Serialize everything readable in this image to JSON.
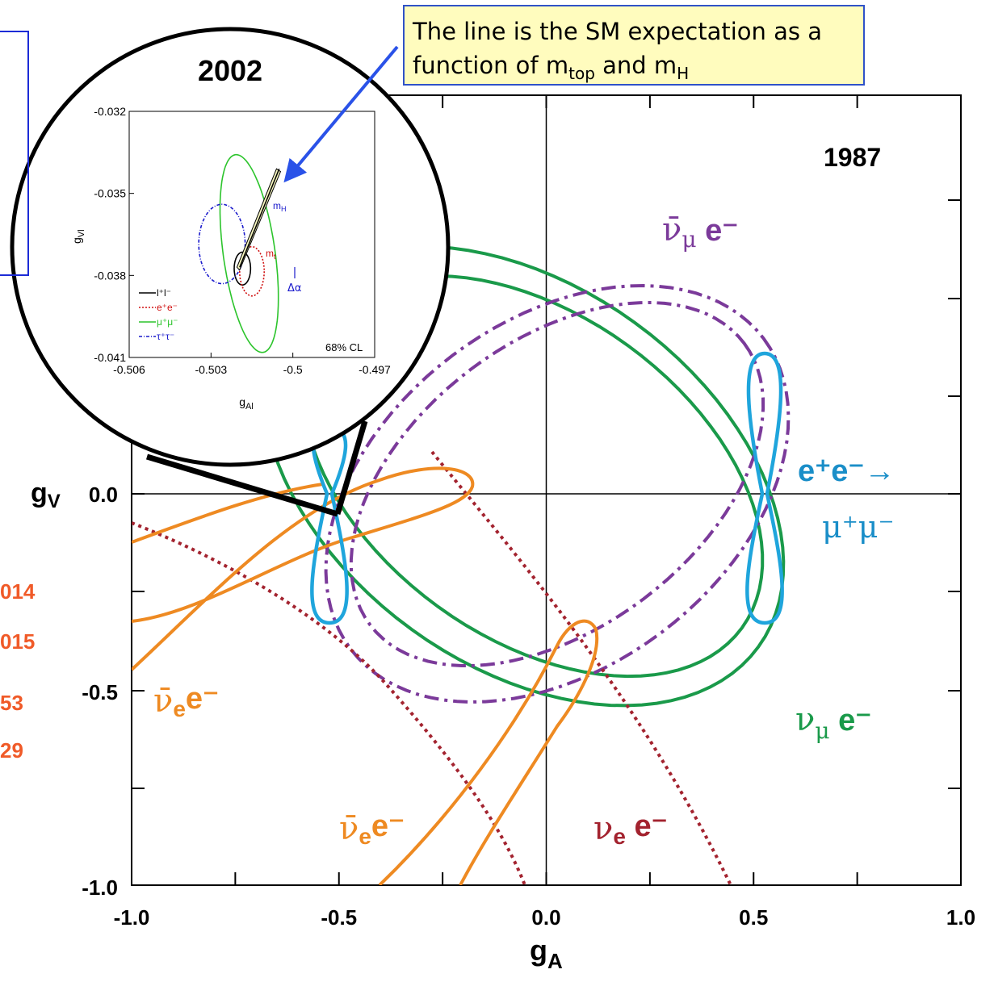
{
  "callout": {
    "line1": "The line is the SM expectation as a",
    "line2_pre": "function of m",
    "line2_sub1": "top",
    "line2_mid": " and m",
    "line2_sub2": "H"
  },
  "left_values": [
    "014",
    "015",
    "53",
    "29"
  ],
  "colors": {
    "green": "#1a9a4a",
    "purple": "#7b3a9a",
    "orange": "#ee8a22",
    "darkred": "#a3232f",
    "cyan": "#1fa5dc",
    "arrow": "#2a52e8",
    "callout_bg": "#fffcbe",
    "callout_border": "#2f52c8",
    "red_text": "#f05a28"
  },
  "chart_data": [
    {
      "type": "line",
      "title": "1987",
      "xlabel": "gA",
      "ylabel": "gV",
      "xlim": [
        -1.0,
        1.0
      ],
      "ylim": [
        -1.0,
        0.0
      ],
      "x_ticks": [
        "-1.0",
        "-0.5",
        "0.0",
        "0.5",
        "1.0"
      ],
      "y_ticks": [
        "-1.0",
        "-0.5",
        "0.0"
      ],
      "grid": false,
      "ylabel_tick": "0.0",
      "series": [
        {
          "name": "ν̄μ e⁻",
          "color": "#7b3a9a",
          "style": "dash-dot",
          "shape": "closed ring"
        },
        {
          "name": "νμ e⁻",
          "color": "#1a9a4a",
          "style": "solid",
          "shape": "closed ring"
        },
        {
          "name": "e⁺e⁻→ μ⁺μ⁻",
          "color": "#1fa5dc",
          "style": "solid",
          "shape": "two lobes at gA ≈ ±0.5"
        },
        {
          "name": "ν̄e e⁻",
          "color": "#ee8a22",
          "style": "solid"
        },
        {
          "name": "νe e⁻",
          "color": "#a3232f",
          "style": "dotted"
        }
      ],
      "annotations": [
        "ν̄",
        "μ",
        "e⁻",
        "e⁺e⁻→",
        "μ⁺μ⁻",
        "ν",
        "e⁻",
        "ν̄",
        "e",
        "e⁻",
        "ν̄",
        "e",
        "e⁻",
        "ν",
        "e",
        "e⁻"
      ],
      "points": [
        {
          "gA": -0.5,
          "gV": -0.04,
          "color": "#e02020"
        }
      ]
    },
    {
      "type": "line",
      "title": "2002",
      "xlabel": "gAl",
      "ylabel": "gVl",
      "xlim": [
        -0.506,
        -0.497
      ],
      "ylim": [
        -0.041,
        -0.032
      ],
      "x_ticks": [
        "-0.506",
        "-0.503",
        "-0.5",
        "-0.497"
      ],
      "y_ticks": [
        "-0.032",
        "-0.035",
        "-0.038",
        "-0.041"
      ],
      "series": [
        {
          "name": "l⁺l⁻",
          "color": "#000000",
          "style": "solid",
          "ellipse": {
            "cx": -0.50185,
            "cy": -0.03775,
            "rx": 0.0003,
            "ry": 0.0006
          }
        },
        {
          "name": "e⁺e⁻",
          "color": "#d01010",
          "style": "dotted",
          "ellipse": {
            "cx": -0.5015,
            "cy": -0.03785,
            "rx": 0.00045,
            "ry": 0.0009
          }
        },
        {
          "name": "μ⁺μ⁻",
          "color": "#2cc42c",
          "style": "solid",
          "ellipse": {
            "cx": -0.5016,
            "cy": -0.0372,
            "rx": 0.00095,
            "ry": 0.00365
          }
        },
        {
          "name": "τ⁺τ⁻",
          "color": "#1a1acc",
          "style": "dash-dot",
          "ellipse": {
            "cx": -0.5026,
            "cy": -0.03685,
            "rx": 0.00085,
            "ry": 0.00145
          }
        }
      ],
      "labels": {
        "mH": "m",
        "mH_sub": "H",
        "mt": "m",
        "mt_sub": "t",
        "alpha": "Δα",
        "cl": "68% CL"
      }
    }
  ]
}
